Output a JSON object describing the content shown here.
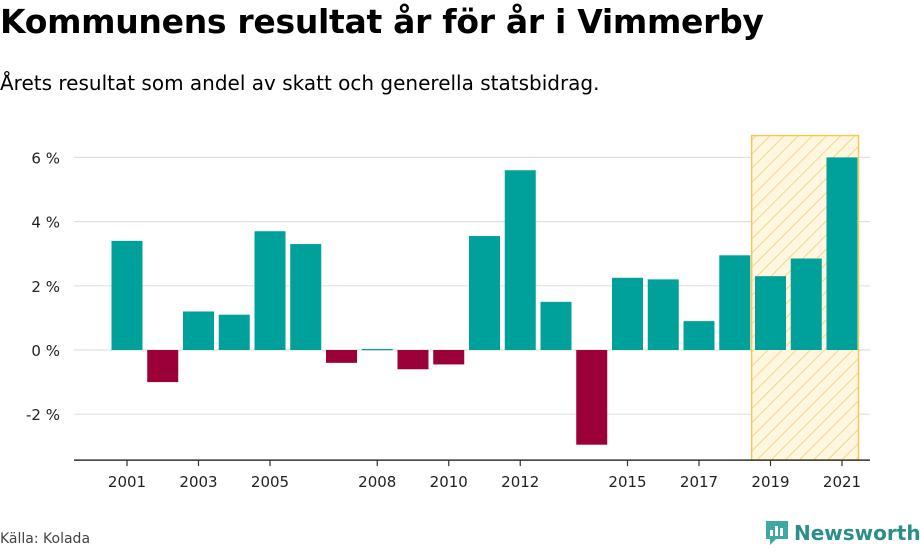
{
  "title": "Kommunens resultat år för år i Vimmerby",
  "subtitle": "Årets resultat som andel av skatt och generella statsbidrag.",
  "source": "Källa: Kolada",
  "brand": {
    "name": "Newsworthy",
    "logo_icon": "newsworthy-logo-icon"
  },
  "colors": {
    "positive": "#00a19a",
    "negative": "#9b0039",
    "highlight_fill": "#fff7df",
    "highlight_stroke": "#f5c85a",
    "grid": "#e0e0e0",
    "axis": "#333333"
  },
  "chart_data": {
    "type": "bar",
    "x": [
      2001,
      2002,
      2003,
      2004,
      2005,
      2006,
      2007,
      2008,
      2009,
      2010,
      2011,
      2012,
      2013,
      2014,
      2015,
      2016,
      2017,
      2018,
      2019,
      2020,
      2021
    ],
    "values": [
      3.4,
      -1.0,
      1.2,
      1.1,
      3.7,
      3.3,
      -0.4,
      0.0,
      -0.6,
      -0.45,
      3.55,
      5.6,
      1.5,
      -2.95,
      2.25,
      2.2,
      0.9,
      2.95,
      2.3,
      2.85,
      6.0
    ],
    "x_tick_labels": [
      "2001",
      "2003",
      "2005",
      "2008",
      "2010",
      "2012",
      "2015",
      "2017",
      "2019",
      "2021"
    ],
    "x_tick_values": [
      2001,
      2003,
      2005,
      2008,
      2010,
      2012,
      2015,
      2017,
      2019,
      2021
    ],
    "y_ticks": [
      6,
      4,
      2,
      0,
      -2
    ],
    "y_tick_labels": [
      "6 %",
      "4 %",
      "2 %",
      "0 %",
      "-2 %"
    ],
    "ylim": [
      -3.4,
      6.9
    ],
    "xlabel": "",
    "ylabel": "",
    "highlight_range": [
      2019,
      2021
    ],
    "highlight_pattern": "diagonal-hatch",
    "grid": true
  }
}
